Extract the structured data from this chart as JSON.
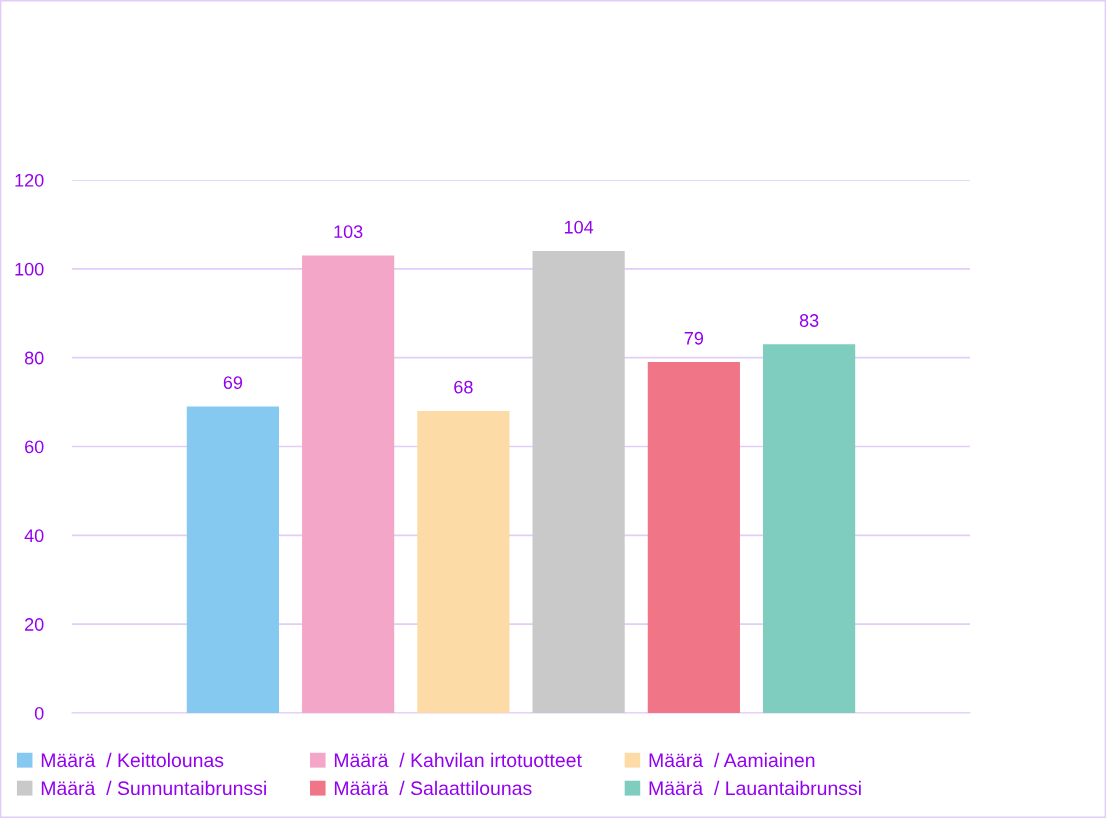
{
  "chart_data": {
    "type": "bar",
    "categories": [
      null
    ],
    "series": [
      {
        "name": "Määrä  / Keittolounas",
        "color": "#85c8f0",
        "values": [
          69
        ]
      },
      {
        "name": "Määrä  / Kahvilan irtotuotteet",
        "color": "#f4a6c9",
        "values": [
          103
        ]
      },
      {
        "name": "Määrä  / Aamiainen",
        "color": "#fddba6",
        "values": [
          68
        ]
      },
      {
        "name": "Määrä  / Sunnuntaibrunssi",
        "color": "#c9c9c9",
        "values": [
          104
        ]
      },
      {
        "name": "Määrä  / Salaattilounas",
        "color": "#f07587",
        "values": [
          79
        ]
      },
      {
        "name": "Määrä  / Lauantaibrunssi",
        "color": "#7ecdbf",
        "values": [
          83
        ]
      }
    ],
    "ylim": [
      0,
      120
    ],
    "yticks": [
      0,
      20,
      40,
      60,
      80,
      100,
      120
    ],
    "grid": "y",
    "legend": "bottom",
    "data_labels": true
  }
}
